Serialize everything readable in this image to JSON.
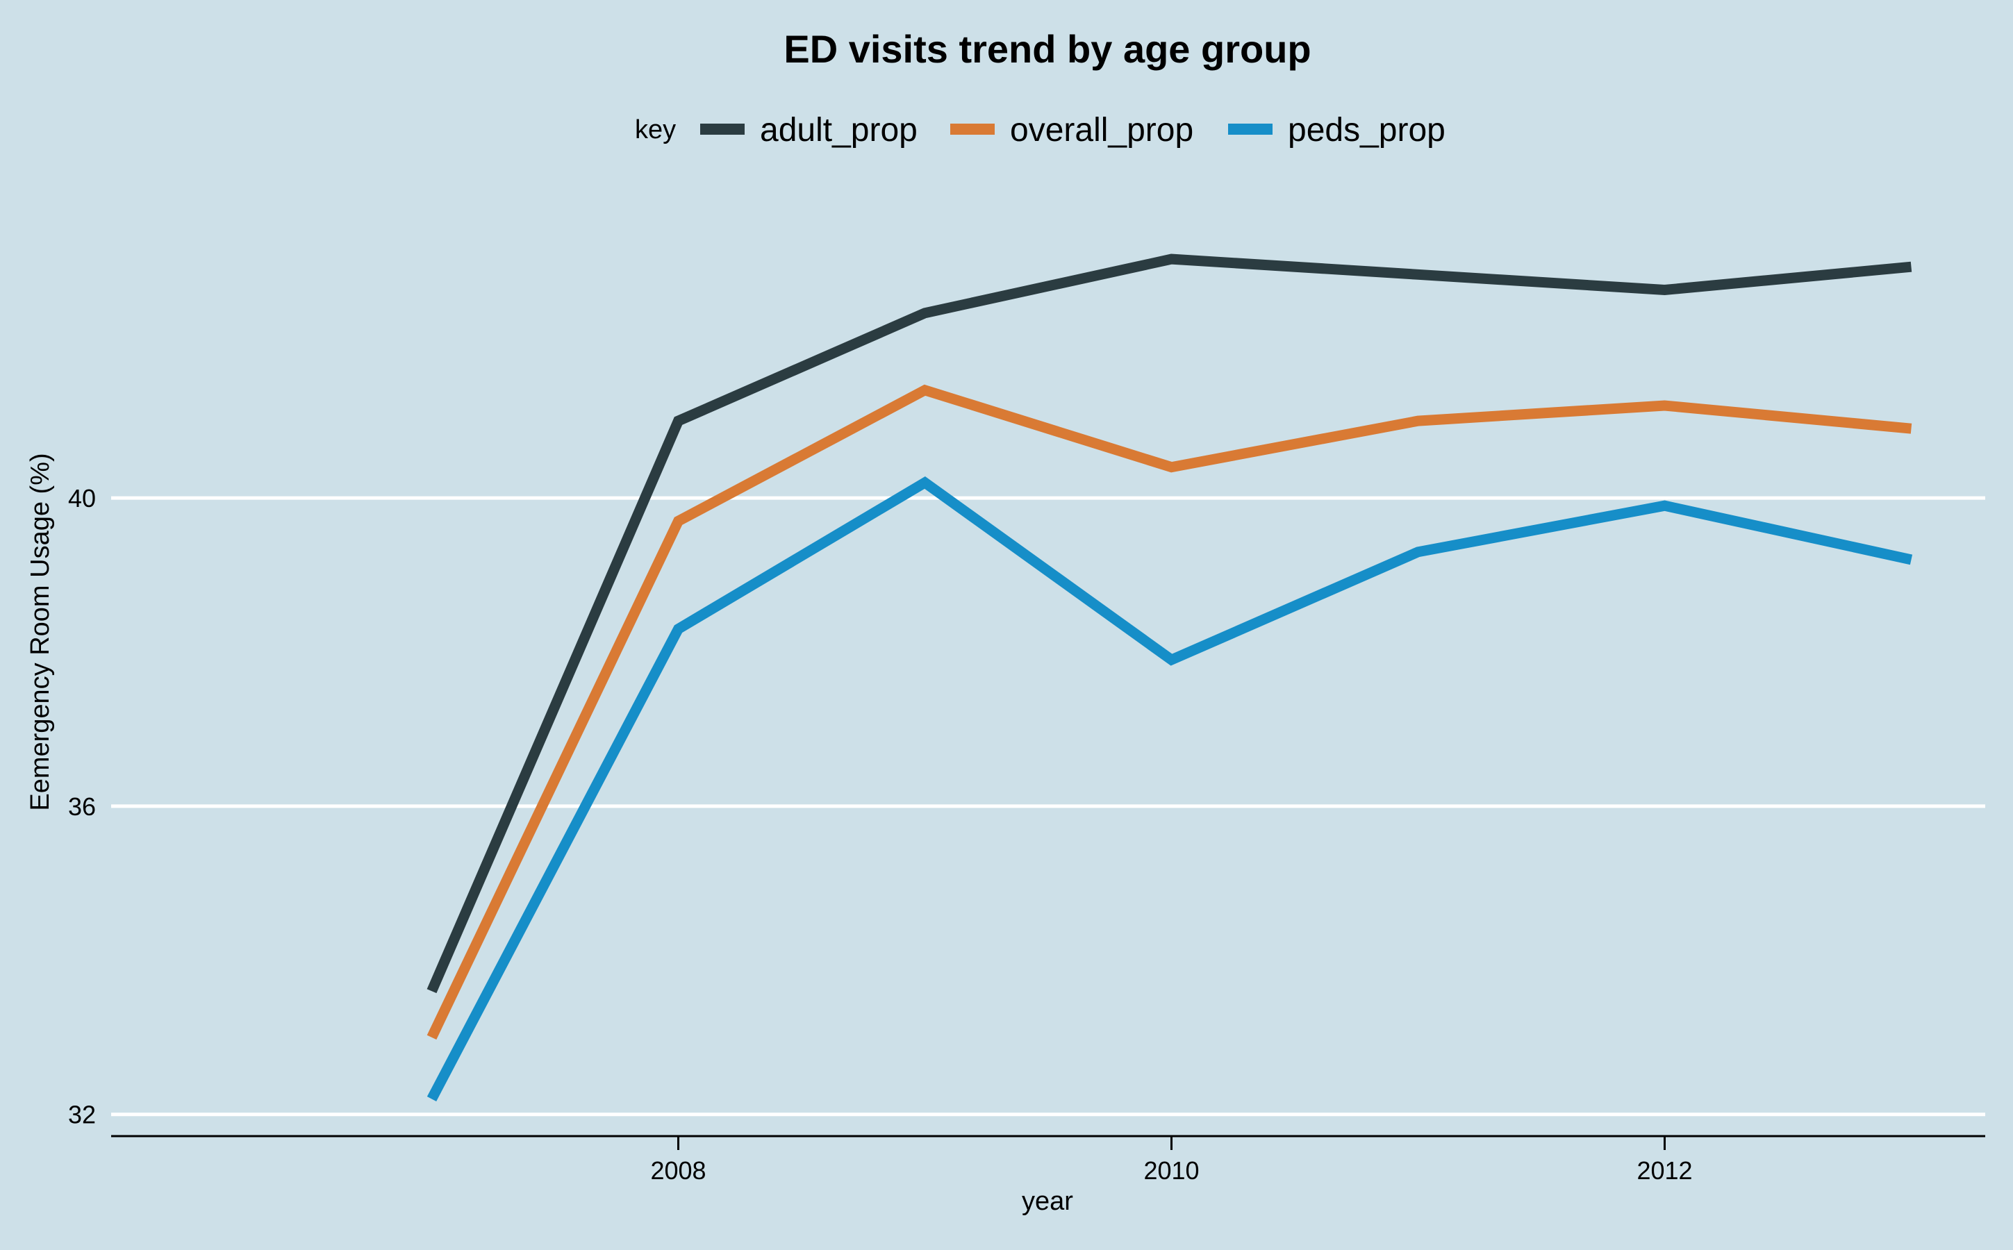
{
  "chart_data": {
    "type": "line",
    "title": "ED visits trend by age group",
    "xlabel": "year",
    "ylabel": "Eemergency Room Usage (%)",
    "legend_title": "key",
    "legend_position": "top",
    "x": [
      2007,
      2008,
      2009,
      2010,
      2011,
      2012,
      2013
    ],
    "x_ticks": [
      2008,
      2010,
      2012
    ],
    "y_ticks": [
      32,
      36,
      40
    ],
    "xlim": [
      2005.7,
      2013.3
    ],
    "ylim": [
      31.7,
      44.3
    ],
    "grid": "horizontal",
    "series": [
      {
        "name": "adult_prop",
        "color": "#2b3c41",
        "values": [
          33.6,
          41.0,
          42.4,
          43.1,
          42.9,
          42.7,
          43.0
        ]
      },
      {
        "name": "overall_prop",
        "color": "#d97a34",
        "values": [
          33.0,
          39.7,
          41.4,
          40.4,
          41.0,
          41.2,
          40.9
        ]
      },
      {
        "name": "peds_prop",
        "color": "#168ec8",
        "values": [
          32.2,
          38.3,
          40.2,
          37.9,
          39.3,
          39.9,
          39.2
        ]
      }
    ]
  }
}
